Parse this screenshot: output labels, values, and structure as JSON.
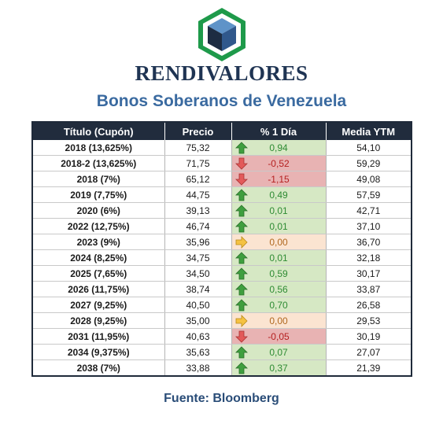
{
  "brand": "RENDIVALORES",
  "subtitle": "Bonos Soberanos de Venezuela",
  "table": {
    "headers": [
      "Título (Cupón)",
      "Precio",
      "% 1 Día",
      "Media YTM"
    ],
    "rows": [
      {
        "title": "2018 (13,625%)",
        "price": "75,32",
        "change": "0,94",
        "direction": "up",
        "ytm": "54,10"
      },
      {
        "title": "2018-2 (13,625%)",
        "price": "71,75",
        "change": "-0,52",
        "direction": "down",
        "ytm": "59,29"
      },
      {
        "title": "2018 (7%)",
        "price": "65,12",
        "change": "-1,15",
        "direction": "down",
        "ytm": "49,08"
      },
      {
        "title": "2019 (7,75%)",
        "price": "44,75",
        "change": "0,49",
        "direction": "up",
        "ytm": "57,59"
      },
      {
        "title": "2020 (6%)",
        "price": "39,13",
        "change": "0,01",
        "direction": "up",
        "ytm": "42,71"
      },
      {
        "title": "2022 (12,75%)",
        "price": "46,74",
        "change": "0,01",
        "direction": "up",
        "ytm": "37,10"
      },
      {
        "title": "2023 (9%)",
        "price": "35,96",
        "change": "0,00",
        "direction": "flat",
        "ytm": "36,70"
      },
      {
        "title": "2024 (8,25%)",
        "price": "34,75",
        "change": "0,01",
        "direction": "up",
        "ytm": "32,18"
      },
      {
        "title": "2025 (7,65%)",
        "price": "34,50",
        "change": "0,59",
        "direction": "up",
        "ytm": "30,17"
      },
      {
        "title": "2026 (11,75%)",
        "price": "38,74",
        "change": "0,56",
        "direction": "up",
        "ytm": "33,87"
      },
      {
        "title": "2027 (9,25%)",
        "price": "40,50",
        "change": "0,70",
        "direction": "up",
        "ytm": "26,58"
      },
      {
        "title": "2028 (9,25%)",
        "price": "35,00",
        "change": "0,00",
        "direction": "flat",
        "ytm": "29,53"
      },
      {
        "title": "2031 (11,95%)",
        "price": "40,63",
        "change": "-0,05",
        "direction": "down",
        "ytm": "30,19"
      },
      {
        "title": "2034 (9,375%)",
        "price": "35,63",
        "change": "0,07",
        "direction": "up",
        "ytm": "27,07"
      },
      {
        "title": "2038 (7%)",
        "price": "33,88",
        "change": "0,37",
        "direction": "up",
        "ytm": "21,39"
      }
    ]
  },
  "source": "Fuente: Bloomberg",
  "colors": {
    "header_bg": "#212c3d",
    "positive": "#2e8b33",
    "negative": "#b52020",
    "neutral": "#b0681f",
    "brand": "#1f3453",
    "subtitle": "#3a6aa0"
  },
  "icons": {
    "up": "green-up-arrow-icon",
    "down": "red-down-arrow-icon",
    "flat": "yellow-right-arrow-icon",
    "logo": "hexagon-cube-logo"
  }
}
